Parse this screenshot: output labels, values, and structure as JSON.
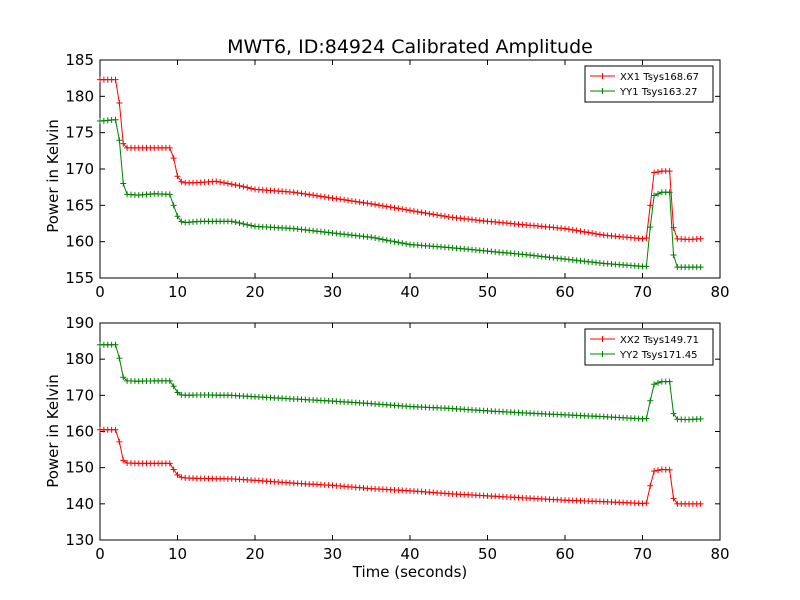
{
  "chart_data": [
    {
      "type": "line",
      "title": "MWT6, ID:84924 Calibrated Amplitude",
      "xlabel": "",
      "ylabel": "Power in Kelvin",
      "xlim": [
        0,
        80
      ],
      "ylim": [
        155,
        185
      ],
      "xticks": [
        "0",
        "10",
        "20",
        "30",
        "40",
        "50",
        "60",
        "70",
        "80"
      ],
      "yticks": [
        "155",
        "160",
        "165",
        "170",
        "175",
        "180",
        "185"
      ],
      "legend_position": "top-right",
      "grid": false,
      "series": [
        {
          "name": "XX1 Tsys168.67",
          "color": "#ff0000",
          "marker": "+",
          "points": [
            [
              0,
              182.3
            ],
            [
              2.2,
              182.3
            ],
            [
              2.6,
              178.0
            ],
            [
              3.0,
              173.5
            ],
            [
              3.5,
              172.9
            ],
            [
              5,
              172.9
            ],
            [
              7,
              172.9
            ],
            [
              9,
              172.9
            ],
            [
              9.5,
              171.5
            ],
            [
              10,
              169.0
            ],
            [
              10.6,
              168.1
            ],
            [
              12,
              168.1
            ],
            [
              15,
              168.3
            ],
            [
              18,
              167.7
            ],
            [
              20,
              167.2
            ],
            [
              25,
              166.8
            ],
            [
              30,
              166.0
            ],
            [
              35,
              165.2
            ],
            [
              40,
              164.3
            ],
            [
              45,
              163.4
            ],
            [
              50,
              162.8
            ],
            [
              55,
              162.3
            ],
            [
              60,
              161.8
            ],
            [
              65,
              160.9
            ],
            [
              70,
              160.4
            ],
            [
              70.5,
              160.5
            ],
            [
              71.0,
              165.0
            ],
            [
              71.4,
              169.5
            ],
            [
              72.5,
              169.7
            ],
            [
              73.5,
              169.7
            ],
            [
              73.8,
              165.0
            ],
            [
              74.1,
              160.4
            ],
            [
              76,
              160.3
            ],
            [
              77.5,
              160.4
            ]
          ]
        },
        {
          "name": "YY1 Tsys163.27",
          "color": "#008000",
          "marker": "+",
          "points": [
            [
              0,
              176.6
            ],
            [
              2.2,
              176.8
            ],
            [
              2.6,
              173.0
            ],
            [
              3.0,
              168.0
            ],
            [
              3.5,
              166.5
            ],
            [
              5,
              166.4
            ],
            [
              7,
              166.6
            ],
            [
              9,
              166.5
            ],
            [
              9.5,
              165.0
            ],
            [
              10,
              163.5
            ],
            [
              10.6,
              162.6
            ],
            [
              13,
              162.8
            ],
            [
              17,
              162.8
            ],
            [
              20,
              162.1
            ],
            [
              25,
              161.8
            ],
            [
              30,
              161.2
            ],
            [
              35,
              160.6
            ],
            [
              40,
              159.6
            ],
            [
              45,
              159.2
            ],
            [
              50,
              158.7
            ],
            [
              55,
              158.2
            ],
            [
              60,
              157.6
            ],
            [
              65,
              157.0
            ],
            [
              70,
              156.6
            ],
            [
              70.5,
              156.6
            ],
            [
              71.0,
              162.0
            ],
            [
              71.4,
              166.3
            ],
            [
              72.5,
              166.8
            ],
            [
              73.5,
              166.8
            ],
            [
              73.8,
              161.5
            ],
            [
              74.1,
              156.5
            ],
            [
              76,
              156.5
            ],
            [
              77.5,
              156.5
            ]
          ]
        }
      ]
    },
    {
      "type": "line",
      "title": "",
      "xlabel": "Time (seconds)",
      "ylabel": "Power in Kelvin",
      "xlim": [
        0,
        80
      ],
      "ylim": [
        130,
        190
      ],
      "xticks": [
        "0",
        "10",
        "20",
        "30",
        "40",
        "50",
        "60",
        "70",
        "80"
      ],
      "yticks": [
        "130",
        "140",
        "150",
        "160",
        "170",
        "180",
        "190"
      ],
      "legend_position": "top-right",
      "grid": false,
      "series": [
        {
          "name": "XX2 Tsys149.71",
          "color": "#ff0000",
          "marker": "+",
          "points": [
            [
              0,
              160.5
            ],
            [
              2.2,
              160.5
            ],
            [
              2.6,
              156.0
            ],
            [
              3.0,
              152.0
            ],
            [
              3.5,
              151.3
            ],
            [
              5,
              151.2
            ],
            [
              7,
              151.2
            ],
            [
              9,
              151.2
            ],
            [
              9.5,
              149.5
            ],
            [
              10,
              148.0
            ],
            [
              10.6,
              147.2
            ],
            [
              13,
              147.0
            ],
            [
              17,
              146.9
            ],
            [
              20,
              146.5
            ],
            [
              25,
              145.7
            ],
            [
              30,
              145.1
            ],
            [
              35,
              144.2
            ],
            [
              40,
              143.6
            ],
            [
              45,
              142.8
            ],
            [
              50,
              142.2
            ],
            [
              55,
              141.6
            ],
            [
              60,
              141.0
            ],
            [
              65,
              140.6
            ],
            [
              70,
              140.1
            ],
            [
              70.5,
              140.2
            ],
            [
              71.0,
              145.0
            ],
            [
              71.4,
              149.0
            ],
            [
              72.5,
              149.5
            ],
            [
              73.5,
              149.4
            ],
            [
              73.8,
              144.5
            ],
            [
              74.1,
              140.0
            ],
            [
              76,
              140.0
            ],
            [
              77.5,
              140.0
            ]
          ]
        },
        {
          "name": "YY2 Tsys171.45",
          "color": "#008000",
          "marker": "+",
          "points": [
            [
              0,
              184.0
            ],
            [
              2.2,
              184.0
            ],
            [
              2.6,
              179.0
            ],
            [
              3.0,
              175.0
            ],
            [
              3.5,
              174.0
            ],
            [
              5,
              173.9
            ],
            [
              7,
              174.0
            ],
            [
              9,
              174.0
            ],
            [
              9.5,
              172.5
            ],
            [
              10,
              170.8
            ],
            [
              10.6,
              170.0
            ],
            [
              13,
              170.1
            ],
            [
              17,
              170.0
            ],
            [
              20,
              169.6
            ],
            [
              25,
              169.0
            ],
            [
              30,
              168.4
            ],
            [
              35,
              167.7
            ],
            [
              40,
              166.9
            ],
            [
              45,
              166.4
            ],
            [
              50,
              165.7
            ],
            [
              55,
              165.1
            ],
            [
              60,
              164.6
            ],
            [
              65,
              164.1
            ],
            [
              70,
              163.5
            ],
            [
              70.5,
              163.6
            ],
            [
              71.0,
              168.5
            ],
            [
              71.4,
              173.0
            ],
            [
              72.5,
              173.8
            ],
            [
              73.5,
              173.8
            ],
            [
              73.8,
              168.0
            ],
            [
              74.1,
              163.4
            ],
            [
              76,
              163.3
            ],
            [
              77.5,
              163.5
            ]
          ]
        }
      ]
    }
  ]
}
